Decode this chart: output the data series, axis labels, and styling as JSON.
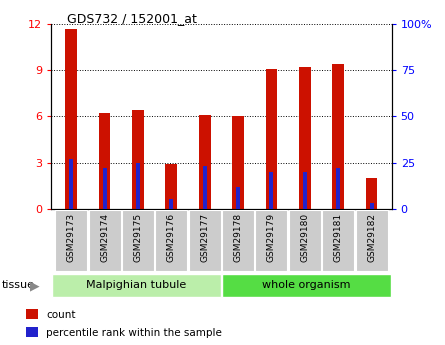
{
  "title": "GDS732 / 152001_at",
  "categories": [
    "GSM29173",
    "GSM29174",
    "GSM29175",
    "GSM29176",
    "GSM29177",
    "GSM29178",
    "GSM29179",
    "GSM29180",
    "GSM29181",
    "GSM29182"
  ],
  "counts": [
    11.7,
    6.2,
    6.4,
    2.9,
    6.1,
    6.0,
    9.1,
    9.2,
    9.4,
    2.0
  ],
  "percentile_ranks": [
    27,
    22,
    25,
    5,
    23,
    12,
    20,
    20,
    22,
    3
  ],
  "ylim_left": [
    0,
    12
  ],
  "ylim_right": [
    0,
    100
  ],
  "yticks_left": [
    0,
    3,
    6,
    9,
    12
  ],
  "yticks_right": [
    0,
    25,
    50,
    75,
    100
  ],
  "yticklabels_right": [
    "0",
    "25",
    "50",
    "75",
    "100%"
  ],
  "bar_color": "#cc1100",
  "pct_color": "#2222cc",
  "tissue_groups": [
    {
      "label": "Malpighian tubule",
      "start": 0,
      "end": 5,
      "color": "#bbeeaa"
    },
    {
      "label": "whole organism",
      "start": 5,
      "end": 10,
      "color": "#55dd44"
    }
  ],
  "tissue_label": "tissue",
  "legend_items": [
    {
      "color": "#cc1100",
      "label": "count"
    },
    {
      "color": "#2222cc",
      "label": "percentile rank within the sample"
    }
  ],
  "bar_width": 0.35,
  "pct_bar_width": 0.12,
  "tick_label_bg": "#cccccc"
}
